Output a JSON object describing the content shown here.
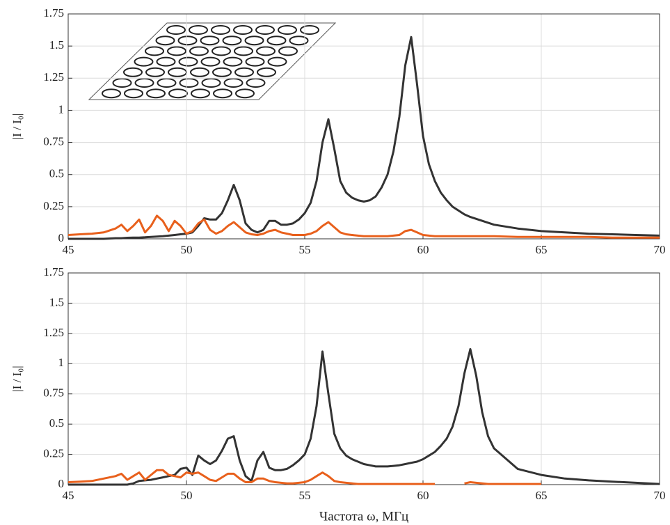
{
  "chart_data": [
    {
      "type": "line",
      "ylabel": "|I / I₀|",
      "x": [
        45,
        45.5,
        46,
        46.5,
        47,
        47.25,
        47.5,
        47.75,
        48,
        48.25,
        48.5,
        48.75,
        49,
        49.25,
        49.5,
        49.75,
        50,
        50.25,
        50.5,
        50.75,
        51,
        51.25,
        51.5,
        51.75,
        52,
        52.25,
        52.5,
        52.75,
        53,
        53.25,
        53.5,
        53.75,
        54,
        54.25,
        54.5,
        54.75,
        55,
        55.25,
        55.5,
        55.75,
        56,
        56.25,
        56.5,
        56.75,
        57,
        57.25,
        57.5,
        57.75,
        58,
        58.25,
        58.5,
        58.75,
        59,
        59.25,
        59.5,
        59.75,
        60,
        60.25,
        60.5,
        60.75,
        61,
        61.25,
        61.5,
        61.75,
        62,
        63,
        64,
        65,
        66,
        67,
        68,
        69,
        70
      ],
      "series": [
        {
          "color": "#333333",
          "values": [
            0,
            0,
            0,
            0,
            0.005,
            0.005,
            0.008,
            0.01,
            0.01,
            0.012,
            0.015,
            0.018,
            0.02,
            0.025,
            0.03,
            0.035,
            0.04,
            0.05,
            0.1,
            0.16,
            0.15,
            0.15,
            0.2,
            0.3,
            0.42,
            0.3,
            0.12,
            0.07,
            0.05,
            0.07,
            0.14,
            0.14,
            0.11,
            0.11,
            0.12,
            0.15,
            0.2,
            0.28,
            0.45,
            0.75,
            0.93,
            0.7,
            0.45,
            0.36,
            0.32,
            0.3,
            0.29,
            0.3,
            0.33,
            0.4,
            0.5,
            0.68,
            0.95,
            1.35,
            1.57,
            1.2,
            0.8,
            0.58,
            0.45,
            0.36,
            0.3,
            0.25,
            0.22,
            0.19,
            0.17,
            0.11,
            0.08,
            0.06,
            0.05,
            0.04,
            0.035,
            0.03,
            0.025
          ]
        },
        {
          "color": "#e8601c",
          "values": [
            0.03,
            0.035,
            0.04,
            0.05,
            0.08,
            0.11,
            0.06,
            0.1,
            0.15,
            0.05,
            0.1,
            0.18,
            0.14,
            0.06,
            0.14,
            0.1,
            0.04,
            0.06,
            0.12,
            0.15,
            0.07,
            0.04,
            0.06,
            0.1,
            0.13,
            0.09,
            0.05,
            0.035,
            0.03,
            0.04,
            0.06,
            0.07,
            0.05,
            0.04,
            0.03,
            0.03,
            0.03,
            0.04,
            0.06,
            0.1,
            0.13,
            0.09,
            0.05,
            0.035,
            0.03,
            0.025,
            0.02,
            0.02,
            0.02,
            0.02,
            0.02,
            0.025,
            0.03,
            0.06,
            0.07,
            0.05,
            0.03,
            0.025,
            0.02,
            0.02,
            0.02,
            0.02,
            0.02,
            0.02,
            0.02,
            0.02,
            0.015,
            0.015,
            0.015,
            0.015,
            0.01,
            0.01,
            0.01
          ]
        }
      ],
      "xlim": [
        45,
        70
      ],
      "xticks": [
        45,
        50,
        55,
        60,
        65,
        70
      ],
      "ylim": [
        0,
        1.75
      ],
      "yticks": [
        0,
        0.25,
        0.5,
        0.75,
        1,
        1.25,
        1.5,
        1.75
      ],
      "grid": true
    },
    {
      "type": "line",
      "ylabel": "|I / I₀|",
      "xlabel": "Частота ω, МГц",
      "x": [
        45,
        45.5,
        46,
        46.5,
        47,
        47.25,
        47.5,
        47.75,
        48,
        48.25,
        48.5,
        48.75,
        49,
        49.25,
        49.5,
        49.75,
        50,
        50.25,
        50.5,
        50.75,
        51,
        51.25,
        51.5,
        51.75,
        52,
        52.25,
        52.5,
        52.75,
        53,
        53.25,
        53.5,
        53.75,
        54,
        54.25,
        54.5,
        54.75,
        55,
        55.25,
        55.5,
        55.75,
        56,
        56.25,
        56.5,
        56.75,
        57,
        57.25,
        57.5,
        57.75,
        58,
        58.25,
        58.5,
        58.75,
        59,
        59.25,
        59.5,
        59.75,
        60,
        60.25,
        60.5,
        60.75,
        61,
        61.25,
        61.5,
        61.75,
        62,
        62.25,
        62.5,
        62.75,
        63,
        64,
        65,
        66,
        67,
        68,
        69,
        70
      ],
      "series": [
        {
          "color": "#333333",
          "values": [
            0,
            0,
            0,
            0,
            0,
            0,
            0,
            0.01,
            0.03,
            0.035,
            0.04,
            0.05,
            0.06,
            0.07,
            0.08,
            0.13,
            0.14,
            0.08,
            0.24,
            0.2,
            0.17,
            0.2,
            0.28,
            0.38,
            0.4,
            0.2,
            0.07,
            0.03,
            0.2,
            0.27,
            0.14,
            0.12,
            0.12,
            0.13,
            0.16,
            0.2,
            0.25,
            0.38,
            0.65,
            1.1,
            0.75,
            0.42,
            0.3,
            0.24,
            0.21,
            0.19,
            0.17,
            0.16,
            0.15,
            0.15,
            0.15,
            0.155,
            0.16,
            0.17,
            0.18,
            0.19,
            0.21,
            0.24,
            0.27,
            0.32,
            0.38,
            0.48,
            0.65,
            0.92,
            1.12,
            0.9,
            0.6,
            0.4,
            0.3,
            0.13,
            0.08,
            0.05,
            0.035,
            0.025,
            0.015,
            0.005
          ]
        },
        {
          "color": "#e8601c",
          "values": [
            0.02,
            0.025,
            0.03,
            0.05,
            0.07,
            0.09,
            0.04,
            0.07,
            0.1,
            0.04,
            0.08,
            0.12,
            0.12,
            0.08,
            0.07,
            0.06,
            0.1,
            0.09,
            0.1,
            0.07,
            0.04,
            0.03,
            0.06,
            0.09,
            0.09,
            0.05,
            0.02,
            0.02,
            0.05,
            0.05,
            0.03,
            0.02,
            0.015,
            0.01,
            0.01,
            0.015,
            0.02,
            0.04,
            0.07,
            0.1,
            0.07,
            0.03,
            0.02,
            0.015,
            0.01,
            0.005,
            0.005,
            0.005,
            0.005,
            0.005,
            0.005,
            0.005,
            0.005,
            0.005,
            0.005,
            0.005,
            0.005,
            0.005,
            0.005,
            null,
            null,
            null,
            null,
            0.01,
            0.02,
            0.015,
            0.01,
            0.005,
            0.005,
            0.005,
            0.005,
            null,
            null,
            null,
            null,
            null
          ]
        }
      ],
      "xlim": [
        45,
        70
      ],
      "xticks": [
        45,
        50,
        55,
        60,
        65,
        70
      ],
      "ylim": [
        0,
        1.75
      ],
      "yticks": [
        0,
        0.25,
        0.5,
        0.75,
        1,
        1.25,
        1.5,
        1.75
      ],
      "grid": true
    }
  ]
}
